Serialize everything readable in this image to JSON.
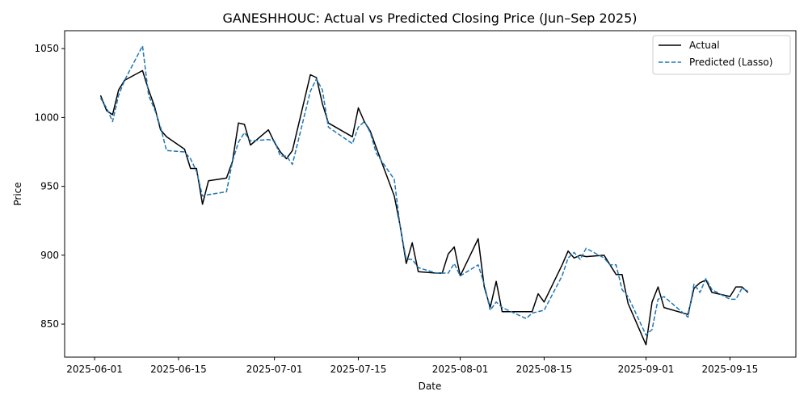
{
  "chart_data": {
    "type": "line",
    "title": "GANESHHOUC: Actual vs Predicted Closing Price (Jun–Sep 2025)",
    "xlabel": "Date",
    "ylabel": "Price",
    "xlim": [
      "2025-05-27",
      "2025-09-26"
    ],
    "ylim": [
      826,
      1063
    ],
    "x_ticks": [
      "2025-06-01",
      "2025-06-15",
      "2025-07-01",
      "2025-07-15",
      "2025-08-01",
      "2025-08-15",
      "2025-09-01",
      "2025-09-15"
    ],
    "y_ticks": [
      850,
      900,
      950,
      1000,
      1050
    ],
    "grid": false,
    "legend": "top-right",
    "series": [
      {
        "name": "Actual",
        "color": "#000000",
        "style": "solid",
        "points": [
          [
            "2025-06-02",
            1016
          ],
          [
            "2025-06-03",
            1005
          ],
          [
            "2025-06-04",
            1002
          ],
          [
            "2025-06-05",
            1020
          ],
          [
            "2025-06-06",
            1027
          ],
          [
            "2025-06-09",
            1034
          ],
          [
            "2025-06-10",
            1020
          ],
          [
            "2025-06-11",
            1008
          ],
          [
            "2025-06-12",
            991
          ],
          [
            "2025-06-13",
            986
          ],
          [
            "2025-06-16",
            977
          ],
          [
            "2025-06-17",
            963
          ],
          [
            "2025-06-18",
            963
          ],
          [
            "2025-06-19",
            937
          ],
          [
            "2025-06-20",
            954
          ],
          [
            "2025-06-23",
            956
          ],
          [
            "2025-06-24",
            968
          ],
          [
            "2025-06-25",
            996
          ],
          [
            "2025-06-26",
            995
          ],
          [
            "2025-06-27",
            980
          ],
          [
            "2025-06-30",
            991
          ],
          [
            "2025-07-01",
            982
          ],
          [
            "2025-07-02",
            975
          ],
          [
            "2025-07-03",
            970
          ],
          [
            "2025-07-04",
            976
          ],
          [
            "2025-07-07",
            1031
          ],
          [
            "2025-07-08",
            1029
          ],
          [
            "2025-07-09",
            1010
          ],
          [
            "2025-07-10",
            996
          ],
          [
            "2025-07-14",
            986
          ],
          [
            "2025-07-15",
            1007
          ],
          [
            "2025-07-16",
            997
          ],
          [
            "2025-07-17",
            990
          ],
          [
            "2025-07-18",
            978
          ],
          [
            "2025-07-21",
            943
          ],
          [
            "2025-07-22",
            921
          ],
          [
            "2025-07-23",
            894
          ],
          [
            "2025-07-24",
            909
          ],
          [
            "2025-07-25",
            888
          ],
          [
            "2025-07-28",
            887
          ],
          [
            "2025-07-29",
            887
          ],
          [
            "2025-07-30",
            901
          ],
          [
            "2025-07-31",
            906
          ],
          [
            "2025-08-01",
            885
          ],
          [
            "2025-08-04",
            912
          ],
          [
            "2025-08-05",
            877
          ],
          [
            "2025-08-06",
            862
          ],
          [
            "2025-08-07",
            881
          ],
          [
            "2025-08-08",
            859
          ],
          [
            "2025-08-11",
            859
          ],
          [
            "2025-08-12",
            859
          ],
          [
            "2025-08-13",
            859
          ],
          [
            "2025-08-14",
            872
          ],
          [
            "2025-08-15",
            866
          ],
          [
            "2025-08-18",
            893
          ],
          [
            "2025-08-19",
            903
          ],
          [
            "2025-08-20",
            898
          ],
          [
            "2025-08-21",
            900
          ],
          [
            "2025-08-22",
            899
          ],
          [
            "2025-08-25",
            900
          ],
          [
            "2025-08-26",
            893
          ],
          [
            "2025-08-27",
            886
          ],
          [
            "2025-08-28",
            886
          ],
          [
            "2025-08-29",
            865
          ],
          [
            "2025-09-01",
            835
          ],
          [
            "2025-09-02",
            866
          ],
          [
            "2025-09-03",
            877
          ],
          [
            "2025-09-04",
            862
          ],
          [
            "2025-09-08",
            857
          ],
          [
            "2025-09-09",
            876
          ],
          [
            "2025-09-10",
            880
          ],
          [
            "2025-09-11",
            882
          ],
          [
            "2025-09-12",
            873
          ],
          [
            "2025-09-15",
            870
          ],
          [
            "2025-09-16",
            877
          ],
          [
            "2025-09-17",
            877
          ],
          [
            "2025-09-18",
            873
          ]
        ]
      },
      {
        "name": "Predicted (Lasso)",
        "color": "#1f77b4",
        "style": "dashed",
        "points": [
          [
            "2025-06-02",
            1014
          ],
          [
            "2025-06-03",
            1007
          ],
          [
            "2025-06-04",
            997
          ],
          [
            "2025-06-05",
            1016
          ],
          [
            "2025-06-06",
            1027
          ],
          [
            "2025-06-09",
            1052
          ],
          [
            "2025-06-10",
            1016
          ],
          [
            "2025-06-11",
            1006
          ],
          [
            "2025-06-12",
            993
          ],
          [
            "2025-06-13",
            976
          ],
          [
            "2025-06-16",
            975
          ],
          [
            "2025-06-17",
            970
          ],
          [
            "2025-06-18",
            961
          ],
          [
            "2025-06-19",
            943
          ],
          [
            "2025-06-20",
            944
          ],
          [
            "2025-06-23",
            946
          ],
          [
            "2025-06-24",
            968
          ],
          [
            "2025-06-25",
            982
          ],
          [
            "2025-06-26",
            989
          ],
          [
            "2025-06-27",
            983
          ],
          [
            "2025-06-30",
            984
          ],
          [
            "2025-07-01",
            983
          ],
          [
            "2025-07-02",
            972
          ],
          [
            "2025-07-03",
            972
          ],
          [
            "2025-07-04",
            966
          ],
          [
            "2025-07-07",
            1019
          ],
          [
            "2025-07-08",
            1028
          ],
          [
            "2025-07-09",
            1020
          ],
          [
            "2025-07-10",
            993
          ],
          [
            "2025-07-14",
            981
          ],
          [
            "2025-07-15",
            993
          ],
          [
            "2025-07-16",
            997
          ],
          [
            "2025-07-17",
            989
          ],
          [
            "2025-07-18",
            974
          ],
          [
            "2025-07-21",
            955
          ],
          [
            "2025-07-22",
            920
          ],
          [
            "2025-07-23",
            897
          ],
          [
            "2025-07-24",
            897
          ],
          [
            "2025-07-25",
            891
          ],
          [
            "2025-07-28",
            887
          ],
          [
            "2025-07-29",
            887
          ],
          [
            "2025-07-30",
            887
          ],
          [
            "2025-07-31",
            894
          ],
          [
            "2025-08-01",
            885
          ],
          [
            "2025-08-04",
            893
          ],
          [
            "2025-08-05",
            879
          ],
          [
            "2025-08-06",
            860
          ],
          [
            "2025-08-07",
            866
          ],
          [
            "2025-08-08",
            862
          ],
          [
            "2025-08-11",
            856
          ],
          [
            "2025-08-12",
            854
          ],
          [
            "2025-08-13",
            858
          ],
          [
            "2025-08-14",
            859
          ],
          [
            "2025-08-15",
            860
          ],
          [
            "2025-08-18",
            885
          ],
          [
            "2025-08-19",
            898
          ],
          [
            "2025-08-20",
            902
          ],
          [
            "2025-08-21",
            897
          ],
          [
            "2025-08-22",
            905
          ],
          [
            "2025-08-25",
            898
          ],
          [
            "2025-08-26",
            893
          ],
          [
            "2025-08-27",
            893
          ],
          [
            "2025-08-28",
            875
          ],
          [
            "2025-08-29",
            870
          ],
          [
            "2025-09-01",
            842
          ],
          [
            "2025-09-02",
            846
          ],
          [
            "2025-09-03",
            868
          ],
          [
            "2025-09-04",
            870
          ],
          [
            "2025-09-08",
            855
          ],
          [
            "2025-09-09",
            879
          ],
          [
            "2025-09-10",
            873
          ],
          [
            "2025-09-11",
            883
          ],
          [
            "2025-09-12",
            875
          ],
          [
            "2025-09-15",
            868
          ],
          [
            "2025-09-16",
            868
          ],
          [
            "2025-09-17",
            876
          ],
          [
            "2025-09-18",
            874
          ]
        ]
      }
    ]
  }
}
